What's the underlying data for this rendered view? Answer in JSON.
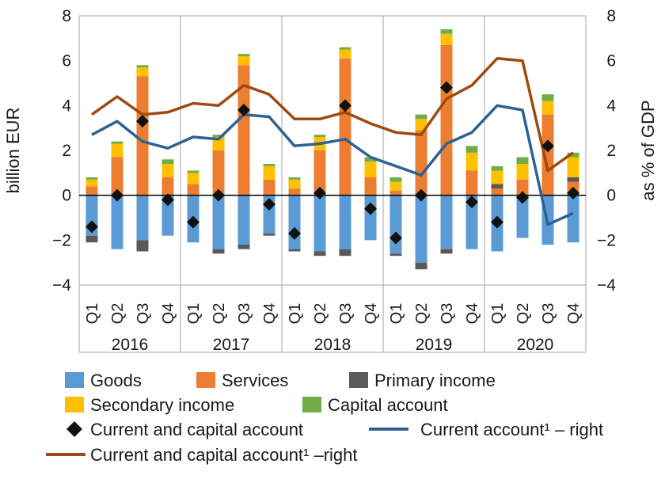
{
  "chart_data": {
    "type": "bar",
    "title": "",
    "ylabel_left": "billion EUR",
    "ylabel_right": "as % of GDP",
    "ylim_left": [
      -4,
      8
    ],
    "ylim_right": [
      -4,
      8
    ],
    "y_ticks": [
      "−4",
      "−2",
      "0",
      "2",
      "4",
      "6",
      "8"
    ],
    "y_tick_values": [
      -4,
      -2,
      0,
      2,
      4,
      6,
      8
    ],
    "grid": false,
    "legend_position": "bottom",
    "categories": [
      "Q1",
      "Q2",
      "Q3",
      "Q4",
      "Q1",
      "Q2",
      "Q3",
      "Q4",
      "Q1",
      "Q2",
      "Q3",
      "Q4",
      "Q1",
      "Q2",
      "Q3",
      "Q4",
      "Q1",
      "Q2",
      "Q3",
      "Q4"
    ],
    "years": [
      "2016",
      "2017",
      "2018",
      "2019",
      "2020"
    ],
    "stacked_series": [
      {
        "key": "goods",
        "name": "Goods",
        "color": "#5b9bd5",
        "values": [
          -1.8,
          -2.4,
          -2.0,
          -1.8,
          -2.1,
          -2.4,
          -2.2,
          -1.7,
          -2.4,
          -2.5,
          -2.4,
          -2.0,
          -2.6,
          -3.0,
          -2.4,
          -2.4,
          -2.5,
          -1.9,
          -2.2,
          -2.1
        ]
      },
      {
        "key": "services",
        "name": "Services",
        "color": "#ed7d31",
        "values": [
          0.4,
          1.7,
          5.3,
          0.8,
          0.5,
          2.0,
          5.8,
          0.7,
          0.3,
          2.0,
          6.1,
          0.8,
          0.2,
          2.9,
          6.7,
          1.1,
          0.3,
          0.7,
          3.6,
          0.6
        ]
      },
      {
        "key": "primary",
        "name": "Primary income",
        "color": "#595959",
        "values": [
          -0.3,
          0.0,
          -0.5,
          0.0,
          0.0,
          -0.2,
          -0.2,
          -0.1,
          -0.1,
          -0.2,
          -0.3,
          0.0,
          -0.1,
          -0.3,
          -0.2,
          0.0,
          0.2,
          0.0,
          0.0,
          0.2
        ]
      },
      {
        "key": "secondary",
        "name": "Secondary income",
        "color": "#ffc000",
        "values": [
          0.3,
          0.6,
          0.4,
          0.6,
          0.5,
          0.6,
          0.4,
          0.6,
          0.4,
          0.6,
          0.4,
          0.7,
          0.4,
          0.5,
          0.5,
          0.8,
          0.6,
          0.7,
          0.6,
          0.9
        ]
      },
      {
        "key": "capital",
        "name": "Capital account",
        "color": "#70ad47",
        "values": [
          0.1,
          0.1,
          0.1,
          0.2,
          0.1,
          0.1,
          0.1,
          0.1,
          0.1,
          0.1,
          0.1,
          0.2,
          0.2,
          0.2,
          0.2,
          0.3,
          0.2,
          0.3,
          0.3,
          0.2
        ]
      }
    ],
    "markers": {
      "name": "Current and capital account",
      "color": "#111111",
      "values": [
        -1.4,
        0.0,
        3.3,
        -0.2,
        -1.2,
        0.0,
        3.8,
        -0.4,
        -1.7,
        0.1,
        4.0,
        -0.6,
        -1.9,
        0.0,
        4.8,
        -0.3,
        -1.2,
        -0.1,
        2.2,
        0.1
      ]
    },
    "lines": [
      {
        "key": "ca",
        "name": "Current account¹ – right",
        "color": "#2e6194",
        "values": [
          2.7,
          3.3,
          2.4,
          2.1,
          2.6,
          2.5,
          3.6,
          3.5,
          2.2,
          2.3,
          2.5,
          1.7,
          1.3,
          0.9,
          2.3,
          2.8,
          4.0,
          3.8,
          -1.3,
          -0.8
        ]
      },
      {
        "key": "cca",
        "name": "Current and capital account¹ –right",
        "color": "#9e4a10",
        "values": [
          3.6,
          4.4,
          3.6,
          3.7,
          4.1,
          4.0,
          4.9,
          4.5,
          3.4,
          3.4,
          3.7,
          3.2,
          2.8,
          2.7,
          4.3,
          4.9,
          6.1,
          6.0,
          1.1,
          1.9
        ]
      }
    ]
  },
  "legend": {
    "goods": "Goods",
    "services": "Services",
    "primary": "Primary income",
    "secondary": "Secondary income",
    "capital": "Capital account",
    "markers": "Current and capital account",
    "ca": "Current account¹ – right",
    "cca": "Current and capital account¹ –right"
  },
  "colors": {
    "goods": "#5b9bd5",
    "services": "#ed7d31",
    "primary": "#595959",
    "secondary": "#ffc000",
    "capital": "#70ad47",
    "markers": "#111111",
    "ca": "#2e6194",
    "cca": "#9e4a10"
  }
}
